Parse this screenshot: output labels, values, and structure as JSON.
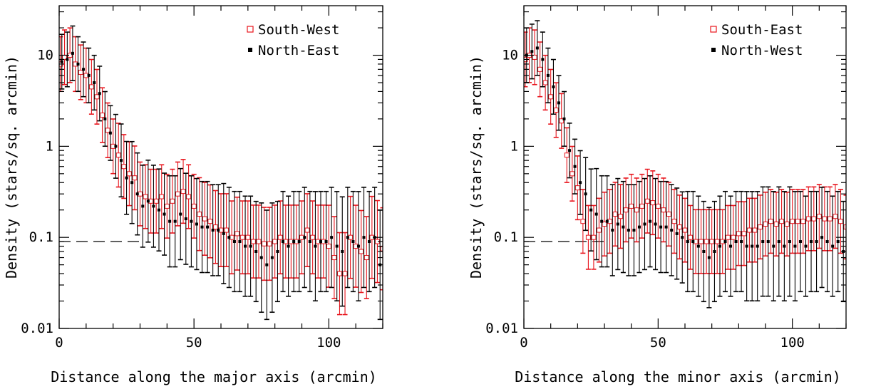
{
  "chart_data": [
    {
      "type": "scatter",
      "xlabel": "Distance along the major axis (arcmin)",
      "ylabel": "Density (stars/sq. arcmin)",
      "xlim": [
        0,
        120
      ],
      "ylim": [
        0.01,
        35
      ],
      "yscale": "log",
      "x_ticks": [
        "0",
        "50",
        "100"
      ],
      "y_ticks": [
        "0.01",
        "0.1",
        "1",
        "10"
      ],
      "reference_line": {
        "y": 0.09,
        "style": "dashed",
        "x_range": [
          0,
          30
        ]
      },
      "legend_position": "top-right",
      "series": [
        {
          "name": "South-West",
          "marker": "open-square",
          "color": "#e8141c",
          "x": [
            0.5,
            2,
            4,
            6,
            8,
            10,
            12,
            14,
            16,
            18,
            20,
            22,
            24,
            26,
            28,
            30,
            32,
            34,
            36,
            38,
            40,
            42,
            44,
            46,
            48,
            50,
            52,
            54,
            56,
            58,
            60,
            62,
            64,
            66,
            68,
            70,
            72,
            74,
            76,
            78,
            80,
            82,
            84,
            86,
            88,
            90,
            92,
            94,
            96,
            98,
            100,
            102,
            104,
            106,
            108,
            110,
            112,
            114,
            116,
            118,
            120
          ],
          "y": [
            8.0,
            9.5,
            10.0,
            8.0,
            6.5,
            6.0,
            4.5,
            3.5,
            2.2,
            1.5,
            1.0,
            0.8,
            0.6,
            0.5,
            0.45,
            0.3,
            0.28,
            0.25,
            0.25,
            0.28,
            0.22,
            0.25,
            0.3,
            0.32,
            0.28,
            0.22,
            0.18,
            0.16,
            0.15,
            0.13,
            0.12,
            0.12,
            0.1,
            0.11,
            0.1,
            0.1,
            0.09,
            0.09,
            0.085,
            0.085,
            0.09,
            0.1,
            0.09,
            0.09,
            0.09,
            0.1,
            0.12,
            0.1,
            0.09,
            0.09,
            0.08,
            0.06,
            0.04,
            0.04,
            0.1,
            0.08,
            0.07,
            0.06,
            0.1,
            0.09,
            0.075
          ],
          "yerr": [
            0.3,
            0.3,
            0.3,
            0.3,
            0.3,
            0.3,
            0.3,
            0.3,
            0.3,
            0.3,
            0.3,
            0.35,
            0.35,
            0.35,
            0.35,
            0.35,
            0.35,
            0.35,
            0.35,
            0.35,
            0.35,
            0.35,
            0.35,
            0.35,
            0.35,
            0.35,
            0.4,
            0.4,
            0.4,
            0.4,
            0.4,
            0.4,
            0.4,
            0.4,
            0.4,
            0.4,
            0.4,
            0.4,
            0.4,
            0.4,
            0.4,
            0.4,
            0.4,
            0.4,
            0.4,
            0.4,
            0.4,
            0.4,
            0.4,
            0.4,
            0.45,
            0.45,
            0.45,
            0.45,
            0.45,
            0.45,
            0.45,
            0.45,
            0.45,
            0.45,
            0.45
          ]
        },
        {
          "name": "North-East",
          "marker": "filled-square",
          "color": "#000000",
          "x": [
            1,
            3,
            5,
            7,
            9,
            11,
            13,
            15,
            17,
            19,
            21,
            23,
            25,
            27,
            29,
            31,
            33,
            35,
            37,
            39,
            41,
            43,
            45,
            47,
            49,
            51,
            53,
            55,
            57,
            59,
            61,
            63,
            65,
            67,
            69,
            71,
            73,
            75,
            77,
            79,
            81,
            83,
            85,
            87,
            89,
            91,
            93,
            95,
            97,
            99,
            101,
            103,
            105,
            107,
            109,
            111,
            113,
            115,
            117,
            119
          ],
          "y": [
            8.5,
            9.0,
            10.5,
            8.0,
            7.0,
            6.0,
            5.0,
            3.8,
            2.0,
            1.4,
            1.0,
            0.7,
            0.45,
            0.4,
            0.3,
            0.22,
            0.25,
            0.22,
            0.2,
            0.18,
            0.15,
            0.15,
            0.18,
            0.16,
            0.15,
            0.14,
            0.13,
            0.13,
            0.12,
            0.12,
            0.11,
            0.1,
            0.09,
            0.09,
            0.08,
            0.08,
            0.07,
            0.06,
            0.05,
            0.06,
            0.07,
            0.09,
            0.08,
            0.09,
            0.09,
            0.1,
            0.09,
            0.08,
            0.09,
            0.09,
            0.1,
            0.08,
            0.07,
            0.1,
            0.09,
            0.08,
            0.1,
            0.09,
            0.1,
            0.05
          ],
          "yerr": [
            0.3,
            0.3,
            0.3,
            0.3,
            0.3,
            0.3,
            0.3,
            0.3,
            0.3,
            0.3,
            0.35,
            0.4,
            0.4,
            0.45,
            0.45,
            0.45,
            0.45,
            0.45,
            0.45,
            0.45,
            0.5,
            0.5,
            0.5,
            0.5,
            0.5,
            0.5,
            0.5,
            0.5,
            0.5,
            0.5,
            0.55,
            0.55,
            0.55,
            0.55,
            0.55,
            0.55,
            0.55,
            0.6,
            0.6,
            0.6,
            0.55,
            0.55,
            0.55,
            0.55,
            0.55,
            0.55,
            0.55,
            0.6,
            0.55,
            0.55,
            0.55,
            0.6,
            0.6,
            0.55,
            0.55,
            0.6,
            0.55,
            0.55,
            0.55,
            0.6
          ]
        }
      ]
    },
    {
      "type": "scatter",
      "xlabel": "Distance along the minor axis (arcmin)",
      "ylabel": "Density (stars/sq. arcmin)",
      "xlim": [
        0,
        120
      ],
      "ylim": [
        0.01,
        35
      ],
      "yscale": "log",
      "x_ticks": [
        "0",
        "50",
        "100"
      ],
      "y_ticks": [
        "0.01",
        "0.1",
        "1",
        "10"
      ],
      "reference_line": {
        "y": 0.09,
        "style": "dashed",
        "x_range": [
          0,
          30
        ]
      },
      "legend_position": "top-right",
      "series": [
        {
          "name": "South-East",
          "marker": "open-square",
          "color": "#e8141c",
          "x": [
            0.5,
            2,
            4,
            6,
            8,
            10,
            12,
            14,
            16,
            18,
            20,
            22,
            24,
            26,
            28,
            30,
            32,
            34,
            36,
            38,
            40,
            42,
            44,
            46,
            48,
            50,
            52,
            54,
            56,
            58,
            60,
            62,
            64,
            66,
            68,
            70,
            72,
            74,
            76,
            78,
            80,
            82,
            84,
            86,
            88,
            90,
            92,
            94,
            96,
            98,
            100,
            102,
            104,
            106,
            108,
            110,
            112,
            114,
            116,
            118,
            120
          ],
          "y": [
            9.0,
            10.0,
            9.5,
            7.0,
            5.0,
            3.5,
            2.5,
            1.9,
            0.8,
            0.5,
            0.35,
            0.15,
            0.1,
            0.1,
            0.12,
            0.14,
            0.15,
            0.18,
            0.17,
            0.2,
            0.22,
            0.2,
            0.22,
            0.25,
            0.24,
            0.22,
            0.2,
            0.18,
            0.15,
            0.13,
            0.12,
            0.1,
            0.09,
            0.09,
            0.09,
            0.09,
            0.09,
            0.09,
            0.1,
            0.1,
            0.11,
            0.11,
            0.12,
            0.12,
            0.13,
            0.14,
            0.15,
            0.14,
            0.15,
            0.14,
            0.15,
            0.15,
            0.15,
            0.16,
            0.16,
            0.17,
            0.16,
            0.16,
            0.17,
            0.15,
            0.13
          ],
          "yerr": [
            0.3,
            0.3,
            0.3,
            0.3,
            0.3,
            0.3,
            0.3,
            0.3,
            0.3,
            0.3,
            0.35,
            0.35,
            0.35,
            0.35,
            0.35,
            0.35,
            0.35,
            0.35,
            0.35,
            0.35,
            0.35,
            0.35,
            0.35,
            0.35,
            0.35,
            0.35,
            0.35,
            0.35,
            0.35,
            0.35,
            0.35,
            0.35,
            0.35,
            0.35,
            0.35,
            0.35,
            0.35,
            0.35,
            0.35,
            0.35,
            0.35,
            0.35,
            0.35,
            0.35,
            0.35,
            0.35,
            0.35,
            0.35,
            0.35,
            0.35,
            0.35,
            0.35,
            0.35,
            0.35,
            0.35,
            0.35,
            0.35,
            0.35,
            0.35,
            0.35,
            0.35
          ]
        },
        {
          "name": "North-West",
          "marker": "filled-square",
          "color": "#000000",
          "x": [
            1,
            3,
            5,
            7,
            9,
            11,
            13,
            15,
            17,
            19,
            21,
            23,
            25,
            27,
            29,
            31,
            33,
            35,
            37,
            39,
            41,
            43,
            45,
            47,
            49,
            51,
            53,
            55,
            57,
            59,
            61,
            63,
            65,
            67,
            69,
            71,
            73,
            75,
            77,
            79,
            81,
            83,
            85,
            87,
            89,
            91,
            93,
            95,
            97,
            99,
            101,
            103,
            105,
            107,
            109,
            111,
            113,
            115,
            117,
            119
          ],
          "y": [
            10.0,
            11.0,
            12.0,
            9.0,
            6.0,
            4.5,
            3.0,
            2.0,
            0.9,
            0.6,
            0.4,
            0.3,
            0.2,
            0.18,
            0.15,
            0.15,
            0.12,
            0.14,
            0.13,
            0.12,
            0.12,
            0.13,
            0.14,
            0.15,
            0.14,
            0.13,
            0.13,
            0.12,
            0.11,
            0.1,
            0.09,
            0.09,
            0.08,
            0.07,
            0.06,
            0.07,
            0.08,
            0.09,
            0.08,
            0.09,
            0.09,
            0.08,
            0.08,
            0.08,
            0.09,
            0.09,
            0.08,
            0.09,
            0.08,
            0.09,
            0.08,
            0.09,
            0.08,
            0.09,
            0.09,
            0.1,
            0.09,
            0.08,
            0.09,
            0.07
          ],
          "yerr": [
            0.3,
            0.3,
            0.3,
            0.3,
            0.3,
            0.3,
            0.3,
            0.3,
            0.3,
            0.3,
            0.35,
            0.4,
            0.45,
            0.5,
            0.5,
            0.5,
            0.5,
            0.5,
            0.5,
            0.5,
            0.5,
            0.5,
            0.5,
            0.5,
            0.5,
            0.5,
            0.5,
            0.5,
            0.5,
            0.5,
            0.55,
            0.55,
            0.55,
            0.55,
            0.55,
            0.55,
            0.55,
            0.55,
            0.55,
            0.55,
            0.55,
            0.6,
            0.6,
            0.6,
            0.6,
            0.6,
            0.6,
            0.6,
            0.6,
            0.6,
            0.6,
            0.55,
            0.55,
            0.55,
            0.55,
            0.55,
            0.55,
            0.55,
            0.55,
            0.55
          ]
        }
      ]
    }
  ]
}
